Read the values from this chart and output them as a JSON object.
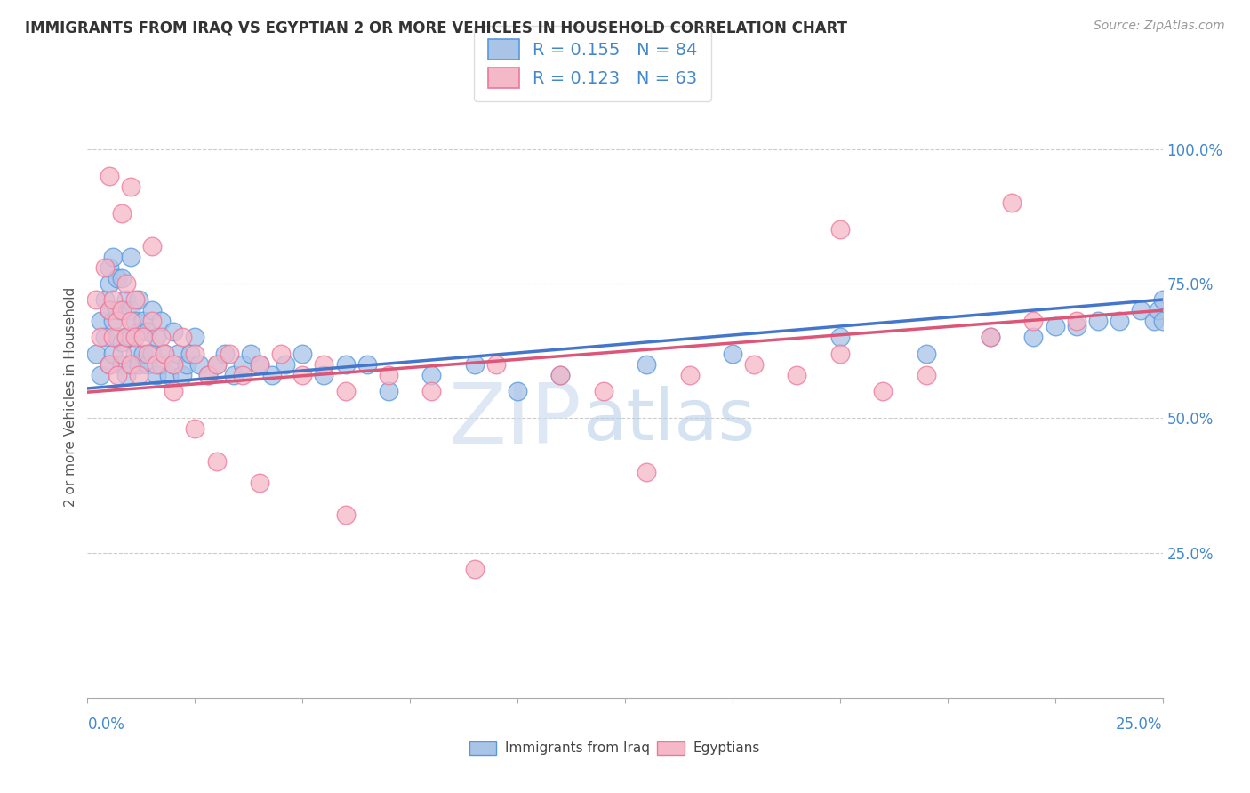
{
  "title": "IMMIGRANTS FROM IRAQ VS EGYPTIAN 2 OR MORE VEHICLES IN HOUSEHOLD CORRELATION CHART",
  "source": "Source: ZipAtlas.com",
  "ylabel": "2 or more Vehicles in Household",
  "y_tick_labels": [
    "25.0%",
    "50.0%",
    "75.0%",
    "100.0%"
  ],
  "y_tick_positions": [
    0.25,
    0.5,
    0.75,
    1.0
  ],
  "xlim": [
    0.0,
    0.25
  ],
  "ylim": [
    -0.02,
    1.1
  ],
  "legend_iraq_r": "0.155",
  "legend_iraq_n": "84",
  "legend_egypt_r": "0.123",
  "legend_egypt_n": "63",
  "legend_label_iraq": "Immigrants from Iraq",
  "legend_label_egypt": "Egyptians",
  "color_iraq_fill": "#aac4e8",
  "color_egypt_fill": "#f5b8c8",
  "color_iraq_edge": "#5599dd",
  "color_egypt_edge": "#ee7799",
  "color_line_iraq": "#4477cc",
  "color_line_egypt": "#dd5577",
  "color_text_blue": "#4488cc",
  "background_color": "#ffffff",
  "watermark_color": "#ccddf0",
  "title_color": "#333333",
  "source_color": "#999999",
  "ylabel_color": "#555555",
  "grid_color": "#cccccc",
  "iraq_x": [
    0.002,
    0.003,
    0.003,
    0.004,
    0.004,
    0.005,
    0.005,
    0.005,
    0.005,
    0.006,
    0.006,
    0.006,
    0.007,
    0.007,
    0.007,
    0.008,
    0.008,
    0.008,
    0.008,
    0.009,
    0.009,
    0.009,
    0.01,
    0.01,
    0.01,
    0.01,
    0.011,
    0.011,
    0.012,
    0.012,
    0.012,
    0.013,
    0.013,
    0.014,
    0.014,
    0.015,
    0.015,
    0.016,
    0.016,
    0.017,
    0.017,
    0.018,
    0.019,
    0.02,
    0.02,
    0.021,
    0.022,
    0.023,
    0.024,
    0.025,
    0.026,
    0.028,
    0.03,
    0.032,
    0.034,
    0.036,
    0.038,
    0.04,
    0.043,
    0.046,
    0.05,
    0.055,
    0.06,
    0.065,
    0.07,
    0.08,
    0.09,
    0.1,
    0.11,
    0.13,
    0.15,
    0.175,
    0.195,
    0.21,
    0.22,
    0.225,
    0.23,
    0.235,
    0.24,
    0.245,
    0.248,
    0.249,
    0.25,
    0.25
  ],
  "iraq_y": [
    0.62,
    0.58,
    0.68,
    0.65,
    0.72,
    0.6,
    0.7,
    0.75,
    0.78,
    0.62,
    0.68,
    0.8,
    0.65,
    0.7,
    0.76,
    0.6,
    0.64,
    0.7,
    0.76,
    0.58,
    0.65,
    0.72,
    0.6,
    0.65,
    0.7,
    0.8,
    0.62,
    0.68,
    0.6,
    0.66,
    0.72,
    0.62,
    0.68,
    0.6,
    0.66,
    0.62,
    0.7,
    0.58,
    0.65,
    0.6,
    0.68,
    0.62,
    0.58,
    0.6,
    0.66,
    0.62,
    0.58,
    0.6,
    0.62,
    0.65,
    0.6,
    0.58,
    0.6,
    0.62,
    0.58,
    0.6,
    0.62,
    0.6,
    0.58,
    0.6,
    0.62,
    0.58,
    0.6,
    0.6,
    0.55,
    0.58,
    0.6,
    0.55,
    0.58,
    0.6,
    0.62,
    0.65,
    0.62,
    0.65,
    0.65,
    0.67,
    0.67,
    0.68,
    0.68,
    0.7,
    0.68,
    0.7,
    0.68,
    0.72
  ],
  "egypt_x": [
    0.002,
    0.003,
    0.004,
    0.005,
    0.005,
    0.006,
    0.006,
    0.007,
    0.007,
    0.008,
    0.008,
    0.009,
    0.009,
    0.01,
    0.01,
    0.011,
    0.011,
    0.012,
    0.013,
    0.014,
    0.015,
    0.016,
    0.017,
    0.018,
    0.02,
    0.022,
    0.025,
    0.028,
    0.03,
    0.033,
    0.036,
    0.04,
    0.045,
    0.05,
    0.055,
    0.06,
    0.07,
    0.08,
    0.095,
    0.11,
    0.12,
    0.14,
    0.155,
    0.165,
    0.175,
    0.185,
    0.195,
    0.21,
    0.22,
    0.23,
    0.005,
    0.008,
    0.01,
    0.015,
    0.02,
    0.025,
    0.03,
    0.04,
    0.06,
    0.09,
    0.13,
    0.175,
    0.215
  ],
  "egypt_y": [
    0.72,
    0.65,
    0.78,
    0.6,
    0.7,
    0.65,
    0.72,
    0.58,
    0.68,
    0.62,
    0.7,
    0.65,
    0.75,
    0.6,
    0.68,
    0.65,
    0.72,
    0.58,
    0.65,
    0.62,
    0.68,
    0.6,
    0.65,
    0.62,
    0.6,
    0.65,
    0.62,
    0.58,
    0.6,
    0.62,
    0.58,
    0.6,
    0.62,
    0.58,
    0.6,
    0.55,
    0.58,
    0.55,
    0.6,
    0.58,
    0.55,
    0.58,
    0.6,
    0.58,
    0.62,
    0.55,
    0.58,
    0.65,
    0.68,
    0.68,
    0.95,
    0.88,
    0.93,
    0.82,
    0.55,
    0.48,
    0.42,
    0.38,
    0.32,
    0.22,
    0.4,
    0.85,
    0.9
  ]
}
